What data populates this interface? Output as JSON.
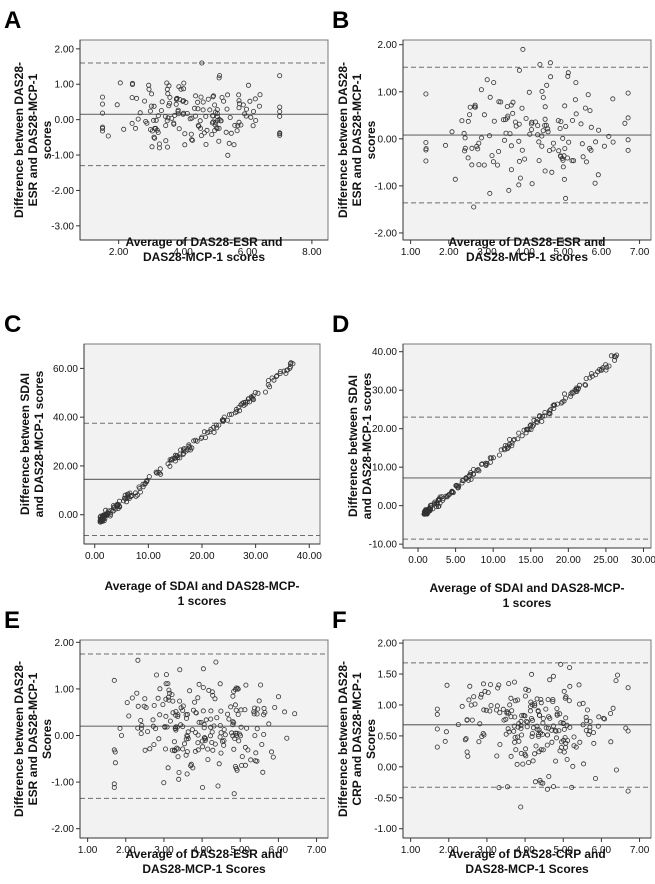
{
  "chart_data": [
    {
      "panel": "A",
      "type": "scatter",
      "xlabel": [
        "Average of DAS28-ESR and",
        "DAS28-MCP-1 scores"
      ],
      "ylabel": [
        "Difference between DAS28-",
        "ESR and DAS28-MCP-1",
        "scores"
      ],
      "xlim": [
        0.8,
        8.5
      ],
      "ylim": [
        -3.4,
        2.25
      ],
      "xticks": [
        2,
        4,
        6,
        8
      ],
      "yticks": [
        -3,
        -2,
        -1,
        0,
        1,
        2
      ],
      "xtick_labels": [
        "2.00",
        "4.00",
        "6.00",
        "8.00"
      ],
      "ytick_labels": [
        "-3.00",
        "-2.00",
        "-1.00",
        "0.00",
        "1.00",
        "2.00"
      ],
      "mean": 0.15,
      "upper_loa": 1.6,
      "lower_loa": -1.3,
      "points": {
        "n": 170,
        "x_min": 1.5,
        "x_max": 7.0,
        "x_center": 4.3,
        "trend_intercept": 0.15,
        "trend_slope": 0.0,
        "scatter": 0.55,
        "y_min": -2.2,
        "y_max": 1.6,
        "seed": 11
      }
    },
    {
      "panel": "B",
      "type": "scatter",
      "xlabel": [
        "Average of DAS28-ESR and",
        "DAS28-MCP-1 scores"
      ],
      "ylabel": [
        "Difference between DAS28-",
        "ESR and DAS28-MCP-1",
        "scores"
      ],
      "xlim": [
        0.8,
        7.3
      ],
      "ylim": [
        -2.15,
        2.1
      ],
      "xticks": [
        1,
        2,
        3,
        4,
        5,
        6,
        7
      ],
      "yticks": [
        -2,
        -1,
        0,
        1,
        2
      ],
      "xtick_labels": [
        "1.00",
        "2.00",
        "3.00",
        "4.00",
        "5.00",
        "6.00",
        "7.00"
      ],
      "ytick_labels": [
        "-2.00",
        "-1.00",
        "0.00",
        "1.00",
        "2.00"
      ],
      "mean": 0.08,
      "upper_loa": 1.52,
      "lower_loa": -1.36,
      "points": {
        "n": 150,
        "x_min": 1.4,
        "x_max": 6.7,
        "x_center": 4.0,
        "trend_intercept": 0.08,
        "trend_slope": 0.0,
        "scatter": 0.6,
        "y_min": -1.85,
        "y_max": 1.9,
        "seed": 23
      }
    },
    {
      "panel": "C",
      "type": "scatter",
      "xlabel": [
        "Average of SDAI and DAS28-MCP-",
        "1 scores"
      ],
      "ylabel": [
        "Difference between SDAI",
        "and DAS28-MCP-1 scores"
      ],
      "xlim": [
        -2,
        42
      ],
      "ylim": [
        -12,
        70
      ],
      "xticks": [
        0,
        10,
        20,
        30,
        40
      ],
      "yticks": [
        0,
        20,
        40,
        60
      ],
      "xtick_labels": [
        "0.00",
        "10.00",
        "20.00",
        "30.00",
        "40.00"
      ],
      "ytick_labels": [
        "0.00",
        "20.00",
        "40.00",
        "60.00"
      ],
      "mean": 14.5,
      "upper_loa": 37.5,
      "lower_loa": -8.5,
      "points": {
        "n": 190,
        "x_min": 1.0,
        "x_max": 37.0,
        "x_center": 8.0,
        "trend_intercept": -4.0,
        "trend_slope": 1.78,
        "scatter": 0.9,
        "y_min": -3.0,
        "y_max": 63.0,
        "seed": 37
      }
    },
    {
      "panel": "D",
      "type": "scatter",
      "xlabel": [
        "Average of SDAI and DAS28-MCP-",
        "1 scores"
      ],
      "ylabel": [
        "Difference between SDAI",
        "and DAS28-MCP-1 scores"
      ],
      "xlim": [
        -2,
        31
      ],
      "ylim": [
        -11,
        42
      ],
      "xticks": [
        0,
        5,
        10,
        15,
        20,
        25,
        30
      ],
      "yticks": [
        -10,
        0,
        10,
        20,
        30,
        40
      ],
      "xtick_labels": [
        "0.00",
        "5.00",
        "10.00",
        "15.00",
        "20.00",
        "25.00",
        "30.00"
      ],
      "ytick_labels": [
        "-10.00",
        "0.00",
        "10.00",
        "20.00",
        "30.00",
        "40.00"
      ],
      "mean": 7.2,
      "upper_loa": 23.0,
      "lower_loa": -8.7,
      "points": {
        "n": 190,
        "x_min": 0.8,
        "x_max": 26.5,
        "x_center": 5.0,
        "trend_intercept": -3.5,
        "trend_slope": 1.6,
        "scatter": 0.55,
        "y_min": -2.2,
        "y_max": 40.0,
        "seed": 53
      }
    },
    {
      "panel": "E",
      "type": "scatter",
      "xlabel": [
        "Average of DAS28-ESR and",
        "DAS28-MCP-1 Scores"
      ],
      "ylabel": [
        "Difference between DAS28-",
        "ESR and DAS28-MCP-1",
        "Scores"
      ],
      "xlim": [
        0.8,
        7.3
      ],
      "ylim": [
        -2.2,
        2.05
      ],
      "xticks": [
        1,
        2,
        3,
        4,
        5,
        6,
        7
      ],
      "yticks": [
        -2,
        -1,
        0,
        1,
        2
      ],
      "xtick_labels": [
        "1.00",
        "2.00",
        "3.00",
        "4.00",
        "5.00",
        "6.00",
        "7.00"
      ],
      "ytick_labels": [
        "-2.00",
        "-1.00",
        "0.00",
        "1.00",
        "2.00"
      ],
      "mean": 0.2,
      "upper_loa": 1.75,
      "lower_loa": -1.35,
      "points": {
        "n": 220,
        "x_min": 1.7,
        "x_max": 6.7,
        "x_center": 4.0,
        "trend_intercept": 0.2,
        "trend_slope": 0.0,
        "scatter": 0.6,
        "y_min": -1.6,
        "y_max": 1.7,
        "seed": 71
      }
    },
    {
      "panel": "F",
      "type": "scatter",
      "xlabel": [
        "Average of DAS28-CRP and",
        "DAS28-MCP-1 Scores"
      ],
      "ylabel": [
        "Difference between DAS28-",
        "CRP and DAS28-MCP-1",
        "Scores"
      ],
      "xlim": [
        0.8,
        7.3
      ],
      "ylim": [
        -1.15,
        2.05
      ],
      "xticks": [
        1,
        2,
        3,
        4,
        5,
        6,
        7
      ],
      "yticks": [
        -1,
        -0.5,
        0,
        0.5,
        1,
        1.5,
        2
      ],
      "xtick_labels": [
        "1.00",
        "2.00",
        "3.00",
        "4.00",
        "5.00",
        "6.00",
        "7.00"
      ],
      "ytick_labels": [
        "-1.00",
        "-0.50",
        "0.00",
        "0.50",
        "1.00",
        "1.50",
        "2.00"
      ],
      "mean": 0.68,
      "upper_loa": 1.68,
      "lower_loa": -0.33,
      "points": {
        "n": 220,
        "x_min": 1.7,
        "x_max": 6.7,
        "x_center": 4.0,
        "trend_intercept": 0.68,
        "trend_slope": 0.0,
        "scatter": 0.45,
        "y_min": -0.8,
        "y_max": 1.95,
        "seed": 97
      }
    }
  ]
}
